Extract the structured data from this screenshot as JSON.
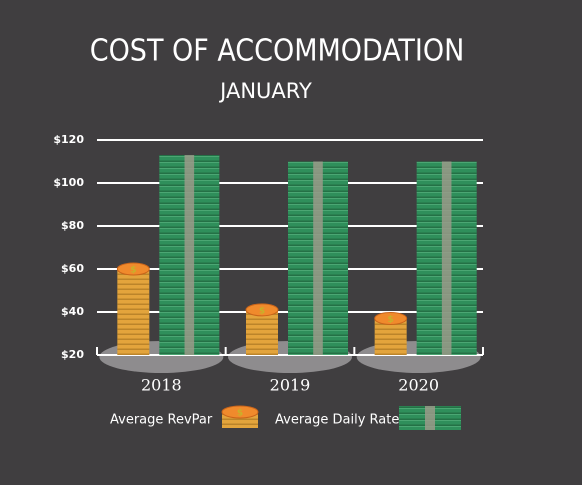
{
  "chart_data": {
    "type": "pictorial-bar",
    "title": "COST OF ACCOMMODATION",
    "subtitle": "JANUARY",
    "categories": [
      "2018",
      "2019",
      "2020"
    ],
    "series": [
      {
        "name": "Average RevPar",
        "color": "#e3a43c",
        "values": [
          60,
          41,
          37
        ]
      },
      {
        "name": "Average Daily Rate",
        "color": "#2f8f5b",
        "values": [
          113,
          110,
          110
        ]
      }
    ],
    "ylim": [
      20,
      120
    ],
    "yticks": [
      {
        "value": 20,
        "label": "$20"
      },
      {
        "value": 40,
        "label": "$40"
      },
      {
        "value": 60,
        "label": "$60"
      },
      {
        "value": 80,
        "label": "$80"
      },
      {
        "value": 100,
        "label": "$100"
      },
      {
        "value": 120,
        "label": "$120"
      }
    ],
    "grid": true
  }
}
